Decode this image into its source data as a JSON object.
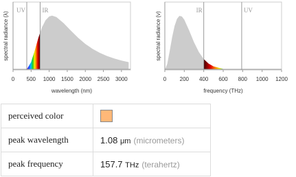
{
  "chart_data": [
    {
      "type": "area",
      "xlabel": "wavelength (nm)",
      "ylabel": "spectral radiance (λ)",
      "x": [
        300,
        400,
        500,
        600,
        700,
        800,
        900,
        1000,
        1080,
        1200,
        1400,
        1600,
        1800,
        2000,
        2200,
        2400,
        2600,
        2800,
        3000,
        3200
      ],
      "values": [
        0.0015,
        0.031,
        0.146,
        0.353,
        0.588,
        0.784,
        0.915,
        0.985,
        1,
        0.974,
        0.861,
        0.724,
        0.593,
        0.48,
        0.388,
        0.315,
        0.258,
        0.211,
        0.173,
        0.144
      ],
      "color": "#cccccc",
      "xlim": [
        0,
        3250
      ],
      "xticks": [
        0,
        500,
        1000,
        1500,
        2000,
        2500,
        3000
      ],
      "ylim": [
        0,
        1.25
      ],
      "markers": [
        380,
        750
      ],
      "marker_labels": [
        "UV",
        "IR"
      ]
    },
    {
      "type": "area",
      "xlabel": "frequency (THz)",
      "ylabel": "spectral radiance (ν)",
      "x": [
        0,
        25,
        50,
        75,
        100,
        125,
        150,
        175,
        200,
        250,
        300,
        350,
        400,
        450,
        500,
        600,
        700,
        800
      ],
      "values": [
        0,
        0.112,
        0.348,
        0.601,
        0.808,
        0.94,
        0.996,
        0.985,
        0.926,
        0.727,
        0.51,
        0.33,
        0.201,
        0.117,
        0.066,
        0.019,
        0.005,
        0.0013
      ],
      "color": "#cccccc",
      "xlim": [
        0,
        1200
      ],
      "xticks": [
        0,
        200,
        400,
        600,
        800,
        1000,
        1200
      ],
      "ylim": [
        0,
        1.25
      ],
      "markers": [
        400,
        790
      ],
      "marker_labels": [
        "IR",
        "UV"
      ]
    }
  ],
  "table": {
    "rows": [
      {
        "label": "perceived color",
        "color": "#ffb878"
      },
      {
        "label": "peak wavelength",
        "value": "1.08",
        "unit": "μm",
        "unit_name": "(micrometers)"
      },
      {
        "label": "peak frequency",
        "value": "157.7",
        "unit": "THz",
        "unit_name": "(terahertz)"
      }
    ]
  }
}
